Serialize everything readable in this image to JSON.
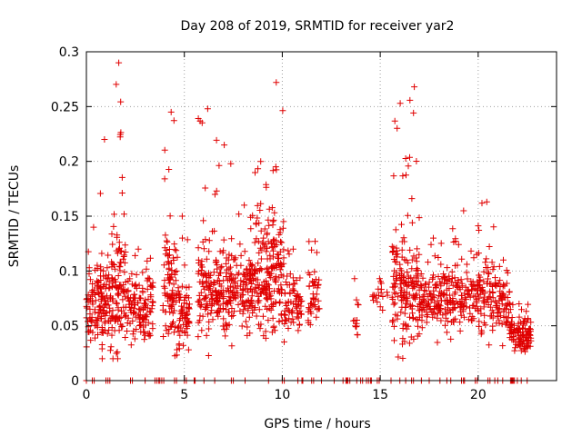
{
  "chart_data": {
    "type": "scatter",
    "title": "Day 208 of 2019, SRMTID for receiver yar2",
    "xlabel": "GPS time / hours",
    "ylabel": "SRMTID / TECUs",
    "xlim": [
      0,
      24
    ],
    "ylim": [
      0,
      0.3
    ],
    "xticks": [
      0,
      5,
      10,
      15,
      20
    ],
    "xtick_labels": [
      "0",
      "5",
      "10",
      "15",
      "20"
    ],
    "yticks": [
      0,
      0.05,
      0.1,
      0.15,
      0.2,
      0.25,
      0.3
    ],
    "ytick_labels": [
      "0",
      "0.05",
      "0.1",
      "0.15",
      "0.2",
      "0.25",
      "0.3"
    ],
    "grid": true,
    "marker": "+",
    "color": "#e00000",
    "clusters": [
      {
        "x_range": [
          0.0,
          0.6
        ],
        "n": 60,
        "y_mean": 0.065,
        "y_spread": 0.03,
        "y_max": 0.14
      },
      {
        "x_range": [
          0.6,
          1.3
        ],
        "n": 90,
        "y_mean": 0.07,
        "y_spread": 0.035,
        "y_max": 0.22
      },
      {
        "x_range": [
          1.3,
          2.0
        ],
        "n": 100,
        "y_mean": 0.085,
        "y_spread": 0.045,
        "y_max": 0.29
      },
      {
        "x_range": [
          2.0,
          3.4
        ],
        "n": 130,
        "y_mean": 0.065,
        "y_spread": 0.022,
        "y_max": 0.12
      },
      {
        "x_range": [
          3.9,
          4.6
        ],
        "n": 90,
        "y_mean": 0.085,
        "y_spread": 0.04,
        "y_max": 0.245
      },
      {
        "x_range": [
          4.6,
          5.3
        ],
        "n": 70,
        "y_mean": 0.06,
        "y_spread": 0.025,
        "y_max": 0.15
      },
      {
        "x_range": [
          5.7,
          6.7
        ],
        "n": 110,
        "y_mean": 0.085,
        "y_spread": 0.035,
        "y_max": 0.248
      },
      {
        "x_range": [
          6.7,
          7.5
        ],
        "n": 90,
        "y_mean": 0.08,
        "y_spread": 0.035,
        "y_max": 0.215
      },
      {
        "x_range": [
          7.5,
          8.5
        ],
        "n": 110,
        "y_mean": 0.08,
        "y_spread": 0.03,
        "y_max": 0.16
      },
      {
        "x_range": [
          8.5,
          9.4
        ],
        "n": 110,
        "y_mean": 0.095,
        "y_spread": 0.04,
        "y_max": 0.2
      },
      {
        "x_range": [
          9.4,
          10.1
        ],
        "n": 90,
        "y_mean": 0.1,
        "y_spread": 0.045,
        "y_max": 0.272
      },
      {
        "x_range": [
          10.1,
          11.0
        ],
        "n": 70,
        "y_mean": 0.07,
        "y_spread": 0.02,
        "y_max": 0.12
      },
      {
        "x_range": [
          11.3,
          11.9
        ],
        "n": 45,
        "y_mean": 0.075,
        "y_spread": 0.025,
        "y_max": 0.127
      },
      {
        "x_range": [
          13.5,
          13.9
        ],
        "n": 12,
        "y_mean": 0.06,
        "y_spread": 0.015,
        "y_max": 0.093
      },
      {
        "x_range": [
          14.6,
          15.4
        ],
        "n": 18,
        "y_mean": 0.075,
        "y_spread": 0.01,
        "y_max": 0.093
      },
      {
        "x_range": [
          15.6,
          16.3
        ],
        "n": 90,
        "y_mean": 0.09,
        "y_spread": 0.045,
        "y_max": 0.253
      },
      {
        "x_range": [
          16.3,
          17.0
        ],
        "n": 80,
        "y_mean": 0.085,
        "y_spread": 0.04,
        "y_max": 0.268
      },
      {
        "x_range": [
          17.0,
          18.5
        ],
        "n": 130,
        "y_mean": 0.075,
        "y_spread": 0.022,
        "y_max": 0.13
      },
      {
        "x_range": [
          18.5,
          20.0
        ],
        "n": 120,
        "y_mean": 0.075,
        "y_spread": 0.025,
        "y_max": 0.155
      },
      {
        "x_range": [
          20.0,
          21.0
        ],
        "n": 90,
        "y_mean": 0.075,
        "y_spread": 0.028,
        "y_max": 0.163
      },
      {
        "x_range": [
          21.0,
          21.6
        ],
        "n": 50,
        "y_mean": 0.07,
        "y_spread": 0.02,
        "y_max": 0.11
      },
      {
        "x_range": [
          21.6,
          22.7
        ],
        "n": 110,
        "y_mean": 0.042,
        "y_spread": 0.012,
        "y_max": 0.07
      }
    ],
    "zero_points": [
      0.0,
      0.3,
      0.4,
      1.0,
      1.1,
      1.2,
      2.25,
      2.35,
      3.0,
      3.5,
      3.6,
      3.7,
      3.75,
      3.85,
      3.95,
      4.5,
      4.6,
      5.0,
      5.1,
      5.5,
      5.55,
      6.0,
      6.55,
      7.4,
      7.5,
      8.1,
      9.3,
      10.0,
      10.1,
      10.8,
      11.0,
      11.05,
      11.5,
      11.6,
      12.0,
      12.65,
      13.1,
      13.25,
      13.3,
      13.35,
      13.45,
      13.8,
      14.0,
      14.1,
      14.3,
      14.4,
      14.5,
      14.55,
      14.85,
      14.95,
      15.55,
      16.0,
      16.3,
      16.6,
      16.7,
      17.1,
      17.5,
      18.05,
      18.4,
      18.6,
      19.15,
      19.25,
      19.3,
      19.85,
      19.95,
      20.5,
      20.6,
      20.85,
      21.0,
      21.25,
      21.65,
      21.7,
      21.75,
      21.8,
      21.85,
      22.0,
      22.2,
      22.5
    ]
  }
}
